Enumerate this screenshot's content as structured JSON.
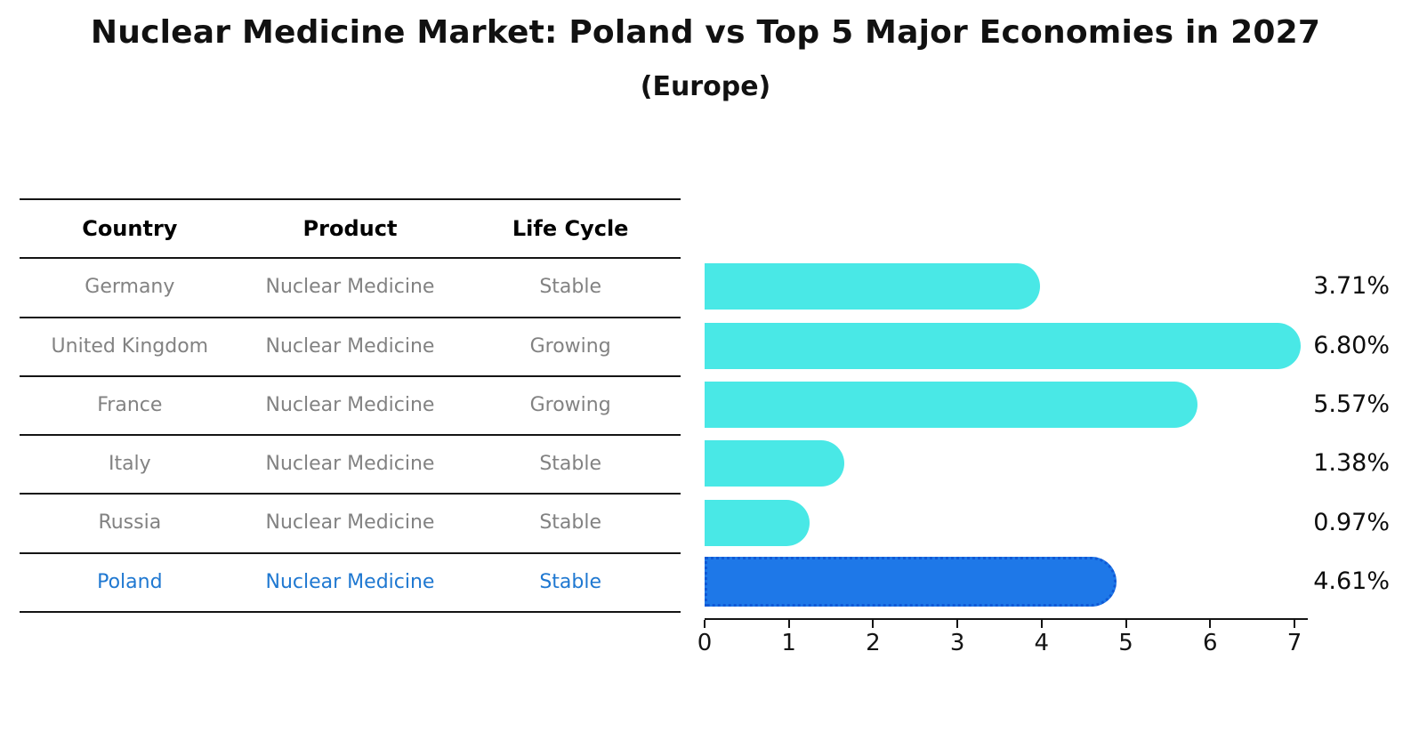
{
  "title": "Nuclear Medicine Market: Poland vs Top 5 Major Economies in 2027",
  "subtitle": "(Europe)",
  "table": {
    "headers": [
      "Country",
      "Product",
      "Life Cycle"
    ],
    "rows": [
      {
        "country": "Germany",
        "product": "Nuclear Medicine",
        "life_cycle": "Stable",
        "highlight": false
      },
      {
        "country": "United Kingdom",
        "product": "Nuclear Medicine",
        "life_cycle": "Growing",
        "highlight": false
      },
      {
        "country": "France",
        "product": "Nuclear Medicine",
        "life_cycle": "Growing",
        "highlight": false
      },
      {
        "country": "Italy",
        "product": "Nuclear Medicine",
        "life_cycle": "Stable",
        "highlight": false
      },
      {
        "country": "Russia",
        "product": "Nuclear Medicine",
        "life_cycle": "Stable",
        "highlight": false
      },
      {
        "country": "Poland",
        "product": "Nuclear Medicine",
        "life_cycle": "Stable",
        "highlight": true
      }
    ]
  },
  "chart_data": {
    "type": "bar",
    "orientation": "horizontal",
    "title": "Nuclear Medicine Market: Poland vs Top 5 Major Economies in 2027 (Europe)",
    "categories": [
      "Germany",
      "United Kingdom",
      "France",
      "Italy",
      "Russia",
      "Poland"
    ],
    "values": [
      3.71,
      6.8,
      5.57,
      1.38,
      0.97,
      4.61
    ],
    "value_labels": [
      "3.71%",
      "6.80%",
      "5.57%",
      "1.38%",
      "0.97%",
      "4.61%"
    ],
    "x_ticks": [
      0,
      1,
      2,
      3,
      4,
      5,
      6,
      7
    ],
    "xlim": [
      0,
      7.15
    ],
    "grid": false,
    "legend": "none",
    "highlight_index": 5
  },
  "colors": {
    "bar_fill": "#49E8E6",
    "highlight_bar_fill": "#1E78E8",
    "highlight_bar_border": "#1059D6",
    "header_text": "#111111",
    "body_text": "#828282",
    "highlight_text": "#1F78D1",
    "axis": "#141414"
  }
}
